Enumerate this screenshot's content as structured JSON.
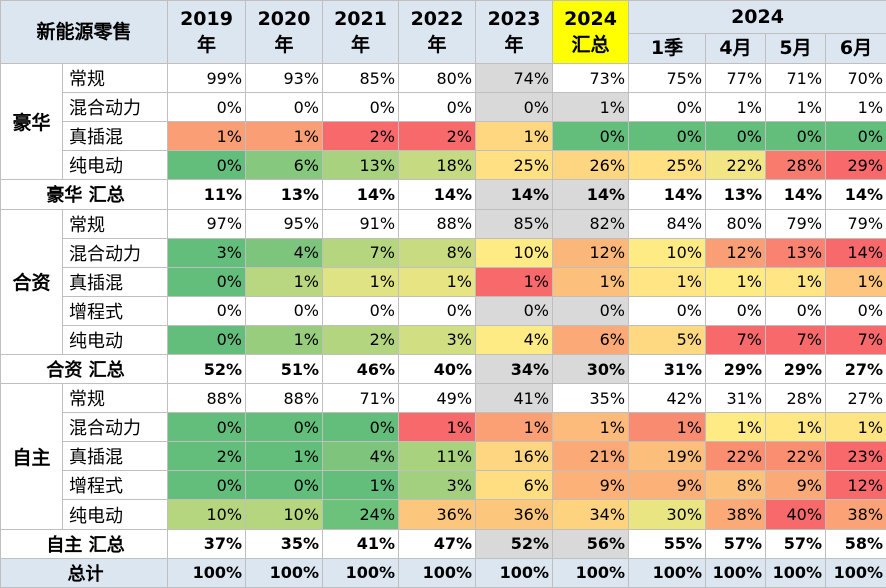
{
  "header": {
    "title": "新能源零售",
    "years": [
      {
        "year": "2019",
        "suffix": "年"
      },
      {
        "year": "2020",
        "suffix": "年"
      },
      {
        "year": "2021",
        "suffix": "年"
      },
      {
        "year": "2022",
        "suffix": "年"
      },
      {
        "year": "2023",
        "suffix": "年"
      },
      {
        "year": "2024",
        "suffix": "汇总"
      }
    ],
    "group_year": "2024",
    "periods": [
      "1季",
      "4月",
      "5月",
      "6月"
    ]
  },
  "groups": [
    {
      "name": "豪华",
      "rows": [
        {
          "label": "常规",
          "values": [
            "99%",
            "93%",
            "85%",
            "80%",
            "74%",
            "73%",
            "75%",
            "77%",
            "71%",
            "70%"
          ],
          "colors": [
            "#ffffff",
            "#ffffff",
            "#ffffff",
            "#ffffff",
            "#d9d9d9",
            "#ffffff",
            "#ffffff",
            "#ffffff",
            "#ffffff",
            "#ffffff"
          ]
        },
        {
          "label": "混合动力",
          "values": [
            "0%",
            "0%",
            "0%",
            "0%",
            "0%",
            "1%",
            "0%",
            "1%",
            "1%",
            "1%"
          ],
          "colors": [
            "#ffffff",
            "#ffffff",
            "#ffffff",
            "#ffffff",
            "#d9d9d9",
            "#d9d9d9",
            "#ffffff",
            "#ffffff",
            "#ffffff",
            "#ffffff"
          ]
        },
        {
          "label": "真插混",
          "values": [
            "1%",
            "1%",
            "2%",
            "2%",
            "1%",
            "0%",
            "0%",
            "0%",
            "0%",
            "0%"
          ],
          "colors": [
            "#fa9e75",
            "#fa9e75",
            "#f8696b",
            "#f8696b",
            "#fed780",
            "#63be7b",
            "#63be7b",
            "#63be7b",
            "#63be7b",
            "#63be7b"
          ]
        },
        {
          "label": "纯电动",
          "values": [
            "0%",
            "6%",
            "13%",
            "18%",
            "25%",
            "26%",
            "25%",
            "22%",
            "28%",
            "29%"
          ],
          "colors": [
            "#63be7b",
            "#86c87d",
            "#a9d27f",
            "#c5da81",
            "#ffe083",
            "#fed580",
            "#ffe083",
            "#f1e683",
            "#f97b6e",
            "#f8696b"
          ]
        }
      ],
      "total": {
        "label": "豪华 汇总",
        "values": [
          "11%",
          "13%",
          "14%",
          "14%",
          "14%",
          "14%",
          "14%",
          "13%",
          "14%",
          "14%"
        ],
        "colors": [
          "#ffffff",
          "#ffffff",
          "#ffffff",
          "#ffffff",
          "#d9d9d9",
          "#d9d9d9",
          "#ffffff",
          "#ffffff",
          "#ffffff",
          "#ffffff"
        ]
      }
    },
    {
      "name": "合资",
      "rows": [
        {
          "label": "常规",
          "values": [
            "97%",
            "95%",
            "91%",
            "88%",
            "85%",
            "82%",
            "84%",
            "80%",
            "79%",
            "79%"
          ],
          "colors": [
            "#ffffff",
            "#ffffff",
            "#ffffff",
            "#ffffff",
            "#d9d9d9",
            "#d9d9d9",
            "#ffffff",
            "#ffffff",
            "#ffffff",
            "#ffffff"
          ]
        },
        {
          "label": "混合动力",
          "values": [
            "3%",
            "4%",
            "7%",
            "8%",
            "10%",
            "12%",
            "10%",
            "12%",
            "13%",
            "14%"
          ],
          "colors": [
            "#63be7b",
            "#7dc47d",
            "#b5d57f",
            "#c9db81",
            "#ffeb84",
            "#fbb679",
            "#ffeb84",
            "#fa9f75",
            "#f98370",
            "#f8696b"
          ]
        },
        {
          "label": "真插混",
          "values": [
            "0%",
            "1%",
            "1%",
            "1%",
            "1%",
            "1%",
            "1%",
            "1%",
            "1%",
            "1%"
          ],
          "colors": [
            "#63be7b",
            "#b9d680",
            "#dfe383",
            "#e6e483",
            "#f8696b",
            "#fdc07c",
            "#ffe584",
            "#ffeb84",
            "#ffe584",
            "#fdc57d"
          ]
        },
        {
          "label": "增程式",
          "values": [
            "0%",
            "0%",
            "0%",
            "0%",
            "0%",
            "0%",
            "0%",
            "0%",
            "0%",
            "0%"
          ],
          "colors": [
            "#ffffff",
            "#ffffff",
            "#ffffff",
            "#ffffff",
            "#d9d9d9",
            "#d9d9d9",
            "#ffffff",
            "#ffffff",
            "#ffffff",
            "#ffffff"
          ]
        },
        {
          "label": "纯电动",
          "values": [
            "0%",
            "1%",
            "2%",
            "3%",
            "4%",
            "6%",
            "5%",
            "7%",
            "7%",
            "7%"
          ],
          "colors": [
            "#63be7b",
            "#99cd7e",
            "#b4d580",
            "#d2de82",
            "#ffeb84",
            "#fbaa77",
            "#fed981",
            "#f8696b",
            "#f8696b",
            "#f8696b"
          ]
        }
      ],
      "total": {
        "label": "合资 汇总",
        "values": [
          "52%",
          "51%",
          "46%",
          "40%",
          "34%",
          "30%",
          "31%",
          "29%",
          "29%",
          "27%"
        ],
        "colors": [
          "#ffffff",
          "#ffffff",
          "#ffffff",
          "#ffffff",
          "#d9d9d9",
          "#d9d9d9",
          "#ffffff",
          "#ffffff",
          "#ffffff",
          "#ffffff"
        ]
      }
    },
    {
      "name": "自主",
      "rows": [
        {
          "label": "常规",
          "values": [
            "88%",
            "88%",
            "71%",
            "49%",
            "41%",
            "35%",
            "42%",
            "31%",
            "28%",
            "27%"
          ],
          "colors": [
            "#ffffff",
            "#ffffff",
            "#ffffff",
            "#ffffff",
            "#d9d9d9",
            "#ffffff",
            "#ffffff",
            "#ffffff",
            "#ffffff",
            "#ffffff"
          ]
        },
        {
          "label": "混合动力",
          "values": [
            "0%",
            "0%",
            "0%",
            "1%",
            "1%",
            "1%",
            "1%",
            "1%",
            "1%",
            "1%"
          ],
          "colors": [
            "#63be7b",
            "#63be7b",
            "#63be7b",
            "#f8696b",
            "#fba075",
            "#fcbb7b",
            "#f98b70",
            "#ffeb84",
            "#ffe784",
            "#fee483"
          ]
        },
        {
          "label": "真插混",
          "values": [
            "2%",
            "1%",
            "4%",
            "11%",
            "16%",
            "21%",
            "19%",
            "22%",
            "22%",
            "23%"
          ],
          "colors": [
            "#63be7b",
            "#63be7b",
            "#7fc47c",
            "#a9d27f",
            "#fed681",
            "#fba977",
            "#fcbf7b",
            "#f98e70",
            "#f98e70",
            "#f8696b"
          ]
        },
        {
          "label": "增程式",
          "values": [
            "0%",
            "0%",
            "1%",
            "3%",
            "6%",
            "9%",
            "9%",
            "8%",
            "9%",
            "12%"
          ],
          "colors": [
            "#63be7b",
            "#63be7b",
            "#63be7b",
            "#a2d07e",
            "#ffde82",
            "#fbb178",
            "#fbb178",
            "#fcc27c",
            "#fba977",
            "#f8696b"
          ]
        },
        {
          "label": "纯电动",
          "values": [
            "10%",
            "10%",
            "24%",
            "36%",
            "36%",
            "34%",
            "30%",
            "38%",
            "40%",
            "38%"
          ],
          "colors": [
            "#b5d57f",
            "#b5d57f",
            "#6cc17b",
            "#fdc67d",
            "#fdc67d",
            "#fed380",
            "#e9e583",
            "#fbaa77",
            "#f8696b",
            "#fba276"
          ]
        }
      ],
      "total": {
        "label": "自主 汇总",
        "values": [
          "37%",
          "35%",
          "41%",
          "47%",
          "52%",
          "56%",
          "55%",
          "57%",
          "57%",
          "58%"
        ],
        "colors": [
          "#ffffff",
          "#ffffff",
          "#ffffff",
          "#ffffff",
          "#d9d9d9",
          "#d9d9d9",
          "#ffffff",
          "#ffffff",
          "#ffffff",
          "#ffffff"
        ]
      }
    }
  ],
  "grand_total": {
    "label": "总计",
    "values": [
      "100%",
      "100%",
      "100%",
      "100%",
      "100%",
      "100%",
      "100%",
      "100%",
      "100%",
      "100%"
    ]
  }
}
